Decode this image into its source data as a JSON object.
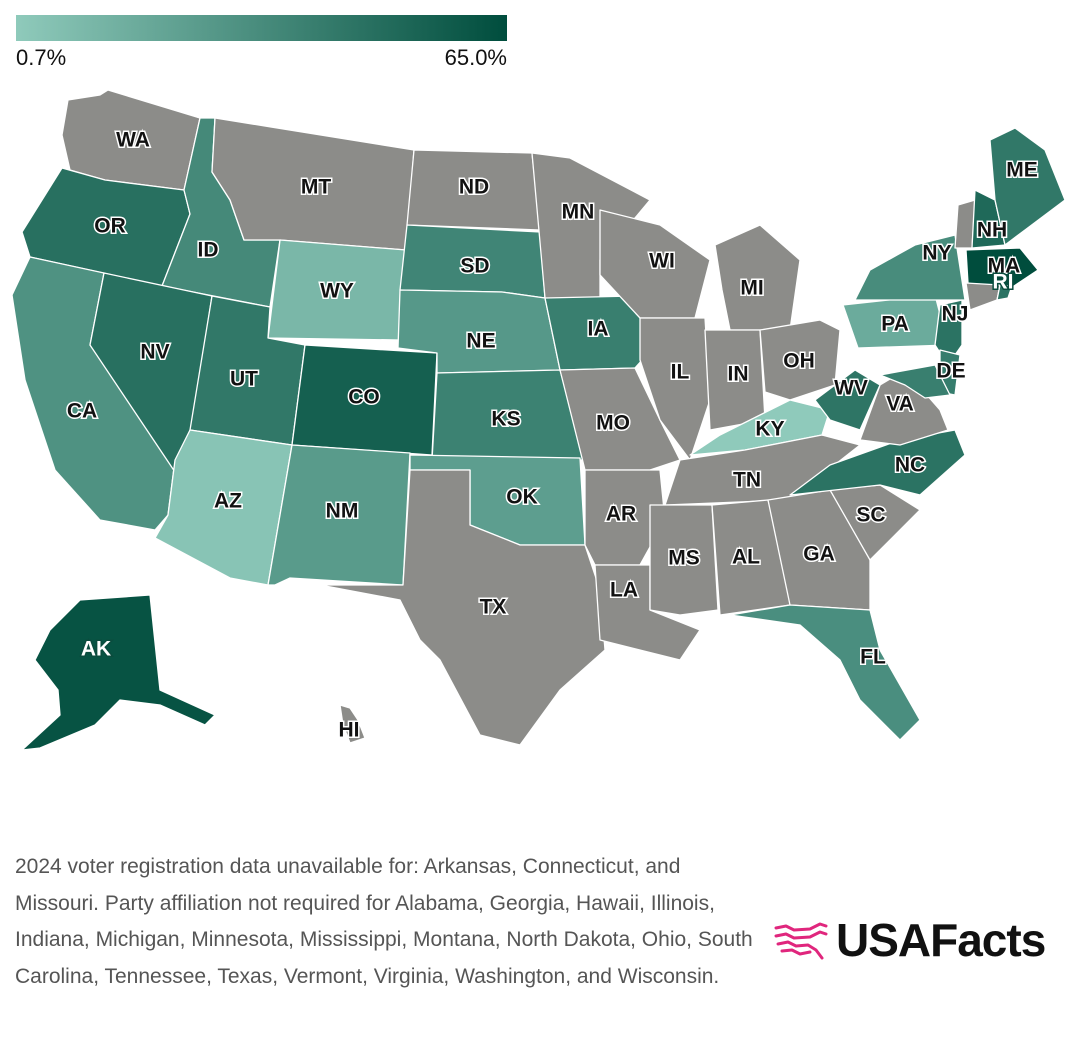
{
  "legend": {
    "min_label": "0.7%",
    "max_label": "65.0%",
    "min_value": 0.7,
    "max_value": 65.0,
    "color_min": "#8fcabb",
    "color_max": "#004d3d",
    "no_data_color": "#8c8c89"
  },
  "map": {
    "type": "choropleth",
    "states": [
      {
        "abbr": "WA",
        "shaded": false
      },
      {
        "abbr": "OR",
        "shaded": true,
        "level": 0.72
      },
      {
        "abbr": "CA",
        "shaded": true,
        "level": 0.45
      },
      {
        "abbr": "ID",
        "shaded": true,
        "level": 0.52
      },
      {
        "abbr": "NV",
        "shaded": true,
        "level": 0.72
      },
      {
        "abbr": "MT",
        "shaded": false
      },
      {
        "abbr": "WY",
        "shaded": true,
        "level": 0.15
      },
      {
        "abbr": "UT",
        "shaded": true,
        "level": 0.66
      },
      {
        "abbr": "AZ",
        "shaded": true,
        "level": 0.05
      },
      {
        "abbr": "CO",
        "shaded": true,
        "level": 0.85
      },
      {
        "abbr": "NM",
        "shaded": true,
        "level": 0.38
      },
      {
        "abbr": "ND",
        "shaded": false
      },
      {
        "abbr": "SD",
        "shaded": true,
        "level": 0.55
      },
      {
        "abbr": "NE",
        "shaded": true,
        "level": 0.4
      },
      {
        "abbr": "KS",
        "shaded": true,
        "level": 0.58
      },
      {
        "abbr": "OK",
        "shaded": true,
        "level": 0.35
      },
      {
        "abbr": "TX",
        "shaded": false
      },
      {
        "abbr": "MN",
        "shaded": false
      },
      {
        "abbr": "IA",
        "shaded": true,
        "level": 0.6
      },
      {
        "abbr": "MO",
        "shaded": false
      },
      {
        "abbr": "AR",
        "shaded": false
      },
      {
        "abbr": "LA",
        "shaded": false
      },
      {
        "abbr": "WI",
        "shaded": false
      },
      {
        "abbr": "IL",
        "shaded": false
      },
      {
        "abbr": "MI",
        "shaded": false
      },
      {
        "abbr": "IN",
        "shaded": false
      },
      {
        "abbr": "OH",
        "shaded": false
      },
      {
        "abbr": "KY",
        "shaded": true,
        "level": 0.0
      },
      {
        "abbr": "TN",
        "shaded": false
      },
      {
        "abbr": "MS",
        "shaded": false
      },
      {
        "abbr": "AL",
        "shaded": false
      },
      {
        "abbr": "GA",
        "shaded": false
      },
      {
        "abbr": "FL",
        "shaded": true,
        "level": 0.48
      },
      {
        "abbr": "SC",
        "shaded": false
      },
      {
        "abbr": "NC",
        "shaded": true,
        "level": 0.7
      },
      {
        "abbr": "VA",
        "shaded": false
      },
      {
        "abbr": "WV",
        "shaded": true,
        "level": 0.68
      },
      {
        "abbr": "PA",
        "shaded": true,
        "level": 0.25
      },
      {
        "abbr": "NY",
        "shaded": true,
        "level": 0.5
      },
      {
        "abbr": "NJ",
        "shaded": true,
        "level": 0.7
      },
      {
        "abbr": "DE",
        "shaded": true,
        "level": 0.62
      },
      {
        "abbr": "MD",
        "shaded": true,
        "level": 0.6
      },
      {
        "abbr": "VT",
        "shaded": false
      },
      {
        "abbr": "NH",
        "shaded": true,
        "level": 0.78
      },
      {
        "abbr": "ME",
        "shaded": true,
        "level": 0.66
      },
      {
        "abbr": "MA",
        "shaded": true,
        "level": 1.0
      },
      {
        "abbr": "CT",
        "shaded": false
      },
      {
        "abbr": "RI",
        "shaded": true,
        "level": 0.7
      },
      {
        "abbr": "AK",
        "shaded": true,
        "level": 0.95
      },
      {
        "abbr": "HI",
        "shaded": false
      }
    ]
  },
  "footnote": "2024 voter registration data unavailable for: Arkansas, Connecticut, and Missouri. Party affiliation not required for Alabama, Georgia, Hawaii, Illinois, Indiana, Michigan, Minnesota, Mississippi, Montana, North Dakota, Ohio, South Carolina, Tennessee, Texas, Vermont, Virginia, Washington, and Wisconsin.",
  "brand": {
    "name": "USAFacts",
    "logo_icon": "usa-map-logo-icon",
    "logo_color": "#e0267d"
  }
}
